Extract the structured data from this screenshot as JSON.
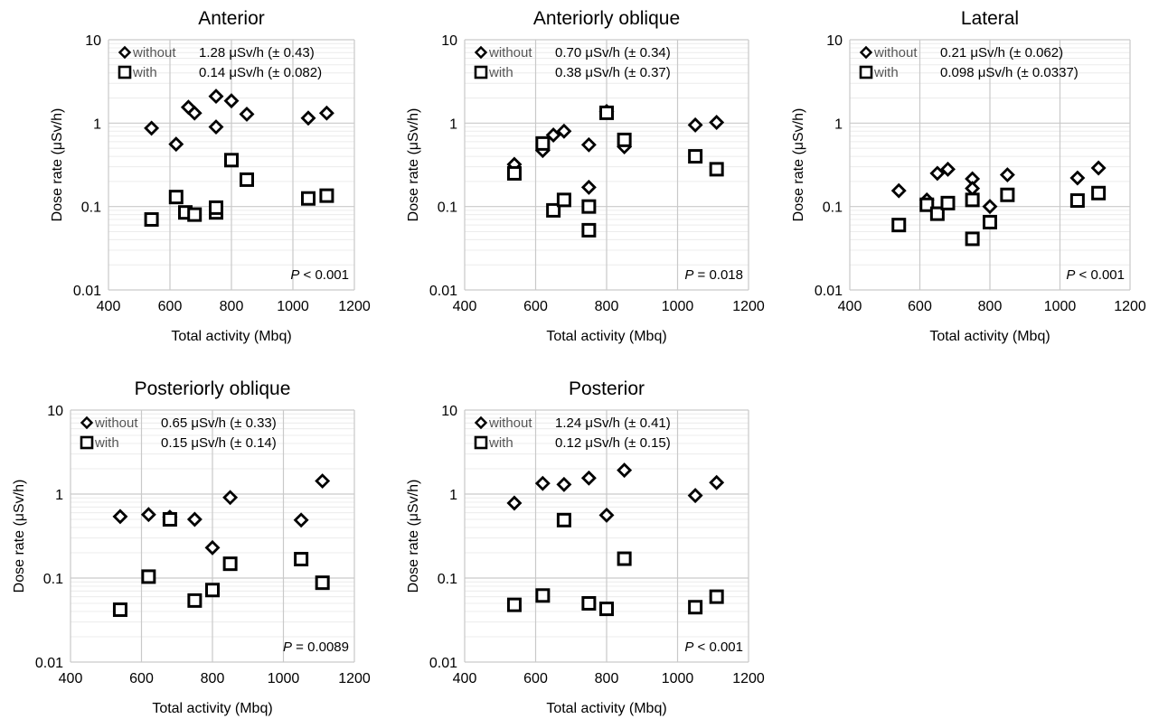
{
  "chart_data": [
    {
      "type": "scatter",
      "title": "Anterior",
      "xlabel": "Total activity (Mbq)",
      "ylabel": "Dose rate (μSv/h)",
      "xlim": [
        400,
        1200
      ],
      "ylim": [
        0.01,
        10
      ],
      "yscale": "log",
      "xticks": [
        "400",
        "600",
        "800",
        "1000",
        "1200"
      ],
      "yticks": [
        "0.01",
        "0.1",
        "1",
        "10"
      ],
      "grid": true,
      "legend_position": "top-left",
      "p_value": {
        "prefix": "P",
        "text": " < 0.001"
      },
      "series": [
        {
          "name": "without",
          "marker": "diamond",
          "summary": "1.28 μSv/h (± 0.43)",
          "points": [
            [
              540,
              0.87
            ],
            [
              620,
              0.56
            ],
            [
              660,
              1.55
            ],
            [
              680,
              1.32
            ],
            [
              750,
              2.1
            ],
            [
              750,
              0.9
            ],
            [
              800,
              1.85
            ],
            [
              850,
              1.28
            ],
            [
              1050,
              1.15
            ],
            [
              1110,
              1.32
            ]
          ]
        },
        {
          "name": "with",
          "marker": "square",
          "summary": "0.14 μSv/h (± 0.082)",
          "points": [
            [
              540,
              0.07
            ],
            [
              620,
              0.13
            ],
            [
              650,
              0.085
            ],
            [
              680,
              0.08
            ],
            [
              750,
              0.085
            ],
            [
              750,
              0.097
            ],
            [
              800,
              0.36
            ],
            [
              850,
              0.21
            ],
            [
              1050,
              0.125
            ],
            [
              1110,
              0.135
            ]
          ]
        }
      ]
    },
    {
      "type": "scatter",
      "title": "Anteriorly oblique",
      "xlabel": "Total activity (Mbq)",
      "ylabel": "Dose rate (μSv/h)",
      "xlim": [
        400,
        1200
      ],
      "ylim": [
        0.01,
        10
      ],
      "yscale": "log",
      "xticks": [
        "400",
        "600",
        "800",
        "1000",
        "1200"
      ],
      "yticks": [
        "0.01",
        "0.1",
        "1",
        "10"
      ],
      "grid": true,
      "legend_position": "top-left",
      "p_value": {
        "prefix": "P",
        "text": " = 0.018"
      },
      "series": [
        {
          "name": "without",
          "marker": "diamond",
          "summary": "0.70 μSv/h (± 0.34)",
          "points": [
            [
              540,
              0.32
            ],
            [
              620,
              0.47
            ],
            [
              650,
              0.72
            ],
            [
              680,
              0.8
            ],
            [
              750,
              0.55
            ],
            [
              750,
              0.17
            ],
            [
              800,
              1.38
            ],
            [
              850,
              0.52
            ],
            [
              1050,
              0.95
            ],
            [
              1110,
              1.02
            ]
          ]
        },
        {
          "name": "with",
          "marker": "square",
          "summary": "0.38 μSv/h (± 0.37)",
          "points": [
            [
              540,
              0.25
            ],
            [
              620,
              0.57
            ],
            [
              650,
              0.09
            ],
            [
              680,
              0.12
            ],
            [
              750,
              0.1
            ],
            [
              750,
              0.052
            ],
            [
              800,
              1.33
            ],
            [
              850,
              0.63
            ],
            [
              1050,
              0.4
            ],
            [
              1110,
              0.28
            ]
          ]
        }
      ]
    },
    {
      "type": "scatter",
      "title": "Lateral",
      "xlabel": "Total activity (Mbq)",
      "ylabel": "Dose rate (μSv/h)",
      "xlim": [
        400,
        1200
      ],
      "ylim": [
        0.01,
        10
      ],
      "yscale": "log",
      "xticks": [
        "400",
        "600",
        "800",
        "1000",
        "1200"
      ],
      "yticks": [
        "0.01",
        "0.1",
        "1",
        "10"
      ],
      "grid": true,
      "legend_position": "top-left",
      "p_value": {
        "prefix": "P",
        "text": " < 0.001"
      },
      "series": [
        {
          "name": "without",
          "marker": "diamond",
          "summary": "0.21 μSv/h (± 0.062)",
          "points": [
            [
              540,
              0.155
            ],
            [
              620,
              0.12
            ],
            [
              650,
              0.25
            ],
            [
              680,
              0.28
            ],
            [
              750,
              0.215
            ],
            [
              750,
              0.165
            ],
            [
              800,
              0.1
            ],
            [
              850,
              0.24
            ],
            [
              1050,
              0.22
            ],
            [
              1110,
              0.29
            ]
          ]
        },
        {
          "name": "with",
          "marker": "square",
          "summary": "0.098 μSv/h (± 0.0337)",
          "points": [
            [
              540,
              0.06
            ],
            [
              620,
              0.105
            ],
            [
              650,
              0.082
            ],
            [
              680,
              0.11
            ],
            [
              750,
              0.12
            ],
            [
              750,
              0.041
            ],
            [
              800,
              0.065
            ],
            [
              850,
              0.138
            ],
            [
              1050,
              0.118
            ],
            [
              1110,
              0.145
            ]
          ]
        }
      ]
    },
    {
      "type": "scatter",
      "title": "Posteriorly oblique",
      "xlabel": "Total activity (Mbq)",
      "ylabel": "Dose rate (μSv/h)",
      "xlim": [
        400,
        1200
      ],
      "ylim": [
        0.01,
        10
      ],
      "yscale": "log",
      "xticks": [
        "400",
        "600",
        "800",
        "1000",
        "1200"
      ],
      "yticks": [
        "0.01",
        "0.1",
        "1",
        "10"
      ],
      "grid": true,
      "legend_position": "top-left",
      "p_value": {
        "prefix": "P",
        "text": " = 0.0089"
      },
      "series": [
        {
          "name": "without",
          "marker": "diamond",
          "summary": "0.65 μSv/h (± 0.33)",
          "points": [
            [
              540,
              0.54
            ],
            [
              620,
              0.57
            ],
            [
              680,
              0.53
            ],
            [
              750,
              0.5
            ],
            [
              800,
              0.23
            ],
            [
              850,
              0.91
            ],
            [
              1050,
              0.49
            ],
            [
              1110,
              1.43
            ]
          ]
        },
        {
          "name": "with",
          "marker": "square",
          "summary": "0.15 μSv/h (± 0.14)",
          "points": [
            [
              540,
              0.042
            ],
            [
              620,
              0.104
            ],
            [
              680,
              0.5
            ],
            [
              750,
              0.054
            ],
            [
              800,
              0.072
            ],
            [
              850,
              0.148
            ],
            [
              1050,
              0.168
            ],
            [
              1110,
              0.088
            ]
          ]
        }
      ]
    },
    {
      "type": "scatter",
      "title": "Posterior",
      "xlabel": "Total activity (Mbq)",
      "ylabel": "Dose rate (μSv/h)",
      "xlim": [
        400,
        1200
      ],
      "ylim": [
        0.01,
        10
      ],
      "yscale": "log",
      "xticks": [
        "400",
        "600",
        "800",
        "1000",
        "1200"
      ],
      "yticks": [
        "0.01",
        "0.1",
        "1",
        "10"
      ],
      "grid": true,
      "legend_position": "top-left",
      "p_value": {
        "prefix": "P",
        "text": " < 0.001"
      },
      "series": [
        {
          "name": "without",
          "marker": "diamond",
          "summary": "1.24 μSv/h (± 0.41)",
          "points": [
            [
              540,
              0.78
            ],
            [
              620,
              1.34
            ],
            [
              680,
              1.3
            ],
            [
              750,
              1.55
            ],
            [
              800,
              0.56
            ],
            [
              850,
              1.92
            ],
            [
              1050,
              0.96
            ],
            [
              1110,
              1.37
            ]
          ]
        },
        {
          "name": "with",
          "marker": "square",
          "summary": "0.12 μSv/h (± 0.15)",
          "points": [
            [
              540,
              0.048
            ],
            [
              620,
              0.062
            ],
            [
              680,
              0.49
            ],
            [
              750,
              0.05
            ],
            [
              800,
              0.043
            ],
            [
              850,
              0.17
            ],
            [
              1050,
              0.045
            ],
            [
              1110,
              0.06
            ]
          ]
        }
      ]
    }
  ]
}
